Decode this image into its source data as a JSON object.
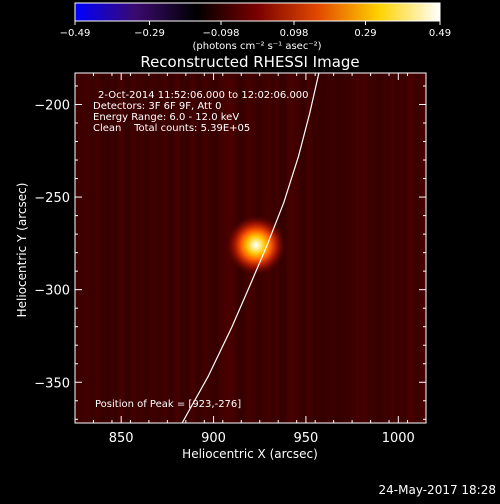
{
  "chart_data": {
    "type": "heatmap",
    "title": "Reconstructed RHESSI Image",
    "xlabel": "Heliocentric X (arcsec)",
    "ylabel": "Heliocentric Y (arcsec)",
    "xlim": [
      825,
      1015
    ],
    "ylim": [
      -372,
      -183
    ],
    "xticks": [
      850,
      900,
      950,
      1000
    ],
    "yticks": [
      -200,
      -250,
      -300,
      -350
    ],
    "xtick_labels": [
      "850",
      "900",
      "950",
      "1000"
    ],
    "ytick_labels": [
      "−200",
      "−250",
      "−300",
      "−350"
    ],
    "colorbar": {
      "range": [
        -0.49,
        0.49
      ],
      "ticks": [
        -0.49,
        -0.29,
        -0.098,
        0.098,
        0.29,
        0.49
      ],
      "tick_labels": [
        "−0.49",
        "−0.29",
        "−0.098",
        "0.098",
        "0.29",
        "0.49"
      ],
      "unit_label": "(photons cm⁻² s⁻¹ asec⁻²)",
      "colors": [
        "#0000ff",
        "#3a0a6e",
        "#000000",
        "#7a0000",
        "#e34a00",
        "#ffd200",
        "#ffffff"
      ]
    },
    "annotations": {
      "time": "2-Oct-2014 11:52:06.000 to 12:02:06.000",
      "detectors": "Detectors: 3F 6F 9F, Att 0",
      "energy": "Energy Range: 6.0 - 12.0 keV",
      "clean": "Clean    Total counts: 5.39E+05",
      "peak": "Position of Peak = [923,-276]"
    },
    "peak": {
      "x": 923,
      "y": -276
    },
    "limb_curve": [
      [
        883,
        -372
      ],
      [
        897,
        -347
      ],
      [
        910,
        -320
      ],
      [
        920,
        -297
      ],
      [
        929,
        -276
      ],
      [
        938,
        -253
      ],
      [
        946,
        -228
      ],
      [
        952,
        -205
      ],
      [
        957,
        -183
      ]
    ]
  },
  "footer": {
    "date": "24-May-2017 18:28"
  }
}
